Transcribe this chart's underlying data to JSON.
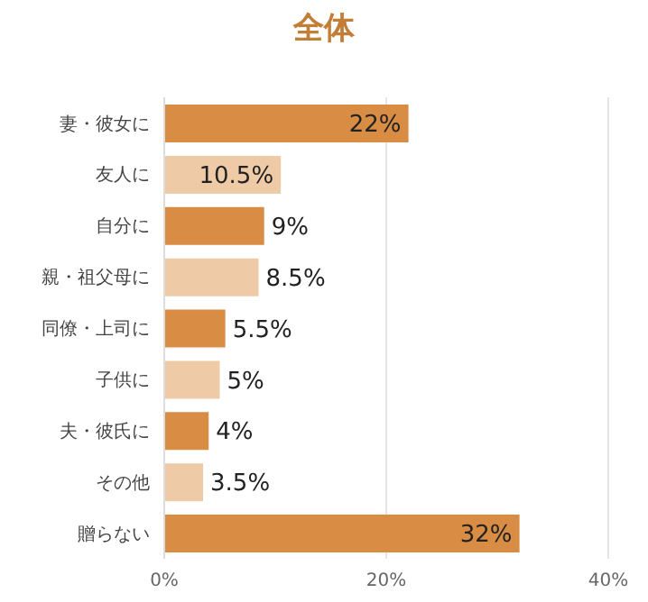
{
  "chart_data": {
    "type": "bar",
    "orientation": "horizontal",
    "title": "全体",
    "categories": [
      "妻・彼女に",
      "友人に",
      "自分に",
      "親・祖父母に",
      "同僚・上司に",
      "子供に",
      "夫・彼氏に",
      "その他",
      "贈らない"
    ],
    "values": [
      22,
      10.5,
      9,
      8.5,
      5.5,
      5,
      4,
      3.5,
      32
    ],
    "colors": [
      "#d98c44",
      "#eecba6",
      "#d98c44",
      "#eecba6",
      "#d98c44",
      "#eecba6",
      "#d98c44",
      "#eecba6",
      "#d98c44"
    ],
    "value_labels": [
      "22%",
      "10.5%",
      "9%",
      "8.5%",
      "5.5%",
      "5%",
      "4%",
      "3.5%",
      "32%"
    ],
    "xlim": [
      0,
      40
    ],
    "xticks": [
      {
        "value": 0,
        "label": "0%"
      },
      {
        "value": 20,
        "label": "20%"
      },
      {
        "value": 40,
        "label": "40%"
      }
    ],
    "grid": "x",
    "legend": false
  }
}
